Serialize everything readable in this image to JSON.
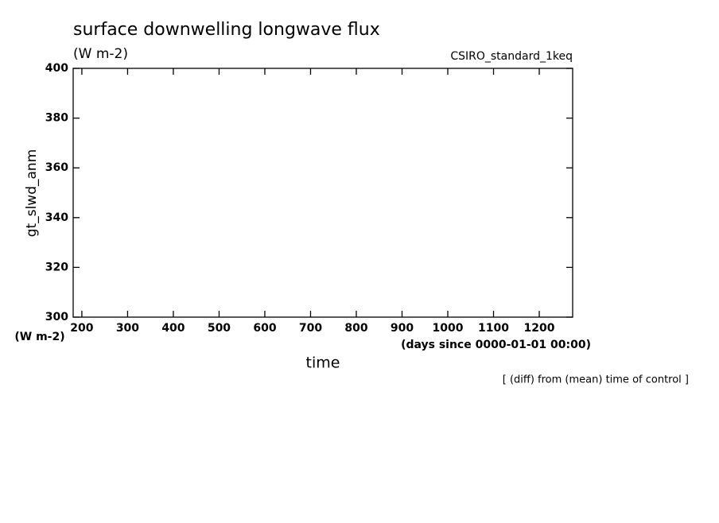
{
  "chart_data": {
    "type": "line",
    "title": "surface downwelling longwave flux",
    "subtitle": "(W m-2)",
    "run_label": "CSIRO_standard_1keq",
    "ylabel": "gt_slwd_anm",
    "yunits": "(W m-2)",
    "xlabel": "time",
    "xunits": "(days since 0000-01-01 00:00)",
    "note": "[ (diff) from (mean) time of control ]",
    "series": [],
    "xlim": [
      181,
      1273
    ],
    "xticks": [
      200,
      300,
      400,
      500,
      600,
      700,
      800,
      900,
      1000,
      1100,
      1200
    ],
    "ylim": [
      300,
      400
    ],
    "yticks": [
      300,
      320,
      340,
      360,
      380,
      400
    ]
  }
}
